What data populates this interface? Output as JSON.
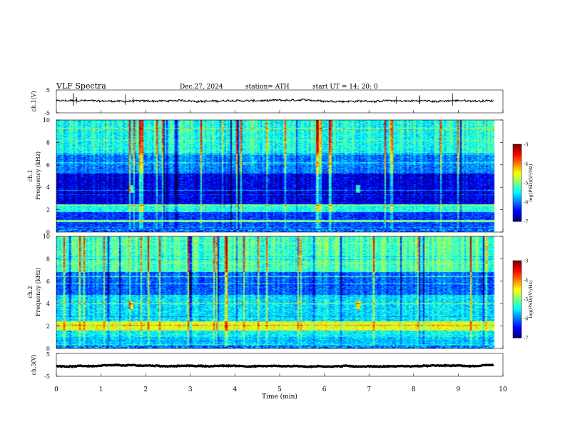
{
  "header": {
    "title": "VLF  Spectra",
    "date": "Dec.27, 2024",
    "station": "station= ATH",
    "start_ut": "start  UT  =    14: 20: 0"
  },
  "chart_data": [
    {
      "type": "line",
      "name": "ch1-waveform",
      "ylabel": "ch.1(V)",
      "ylim": [
        -5,
        5
      ],
      "yticks": [
        "5",
        "-5"
      ],
      "x_range": [
        0,
        10
      ],
      "data_end_min": 9.8,
      "mean_level": 0.2,
      "noise_amplitude": 0.7
    },
    {
      "type": "heatmap",
      "name": "ch1-spectrogram",
      "ylabel": "ch.1\nFrequency  (kHz)",
      "ylim": [
        0,
        10
      ],
      "yticks": [
        "0",
        "2",
        "4",
        "6",
        "8",
        "10"
      ],
      "x_range": [
        0,
        10
      ],
      "data_end_min": 9.8,
      "colorbar": {
        "label": "log(PSD)(V²/Hz)",
        "range": [
          -7,
          -3
        ],
        "ticks": [
          "-3",
          "-4",
          "-5",
          "-6",
          "-7"
        ]
      },
      "bands_khz": [
        {
          "from": 0.0,
          "to": 0.9,
          "level": -6.2
        },
        {
          "from": 0.9,
          "to": 1.1,
          "level": -5.0
        },
        {
          "from": 1.1,
          "to": 1.8,
          "level": -6.3
        },
        {
          "from": 1.8,
          "to": 2.5,
          "level": -5.4
        },
        {
          "from": 2.5,
          "to": 5.2,
          "level": -6.6
        },
        {
          "from": 5.2,
          "to": 7.0,
          "level": -6.0
        },
        {
          "from": 7.0,
          "to": 10.0,
          "level": -5.4
        }
      ],
      "sferic_bursts_min": [
        1.65,
        6.75
      ]
    },
    {
      "type": "heatmap",
      "name": "ch2-spectrogram",
      "ylabel": "ch.2\nFrequency  (kHz)",
      "ylim": [
        0,
        10
      ],
      "yticks": [
        "0",
        "2",
        "4",
        "6",
        "8",
        "10"
      ],
      "x_range": [
        0,
        10
      ],
      "data_end_min": 9.8,
      "colorbar": {
        "label": "log(PSD)(V²/Hz)",
        "range": [
          -7,
          -3
        ],
        "ticks": [
          "-3",
          "-4",
          "-5",
          "-6",
          "-7"
        ]
      },
      "bands_khz": [
        {
          "from": 0.0,
          "to": 1.0,
          "level": -5.7
        },
        {
          "from": 1.0,
          "to": 1.6,
          "level": -5.5
        },
        {
          "from": 1.6,
          "to": 2.4,
          "level": -4.6
        },
        {
          "from": 2.4,
          "to": 4.8,
          "level": -5.6
        },
        {
          "from": 4.8,
          "to": 6.8,
          "level": -6.1
        },
        {
          "from": 6.8,
          "to": 10.0,
          "level": -5.2
        }
      ],
      "sferic_bursts_min": [
        1.65,
        6.75
      ]
    },
    {
      "type": "line",
      "name": "ch3-waveform",
      "ylabel": "ch.3(V)",
      "ylim": [
        -5,
        5
      ],
      "yticks": [
        "5",
        "-5"
      ],
      "x_range": [
        0,
        10
      ],
      "data_end_min": 9.8,
      "mean_level": -0.5,
      "noise_amplitude": 0.15
    }
  ],
  "x_axis": {
    "label": "Time  (min)",
    "ticks": [
      "0",
      "1",
      "2",
      "3",
      "4",
      "5",
      "6",
      "7",
      "8",
      "9",
      "10"
    ]
  },
  "colors": {
    "trace": "#000000",
    "background": "#ffffff"
  }
}
